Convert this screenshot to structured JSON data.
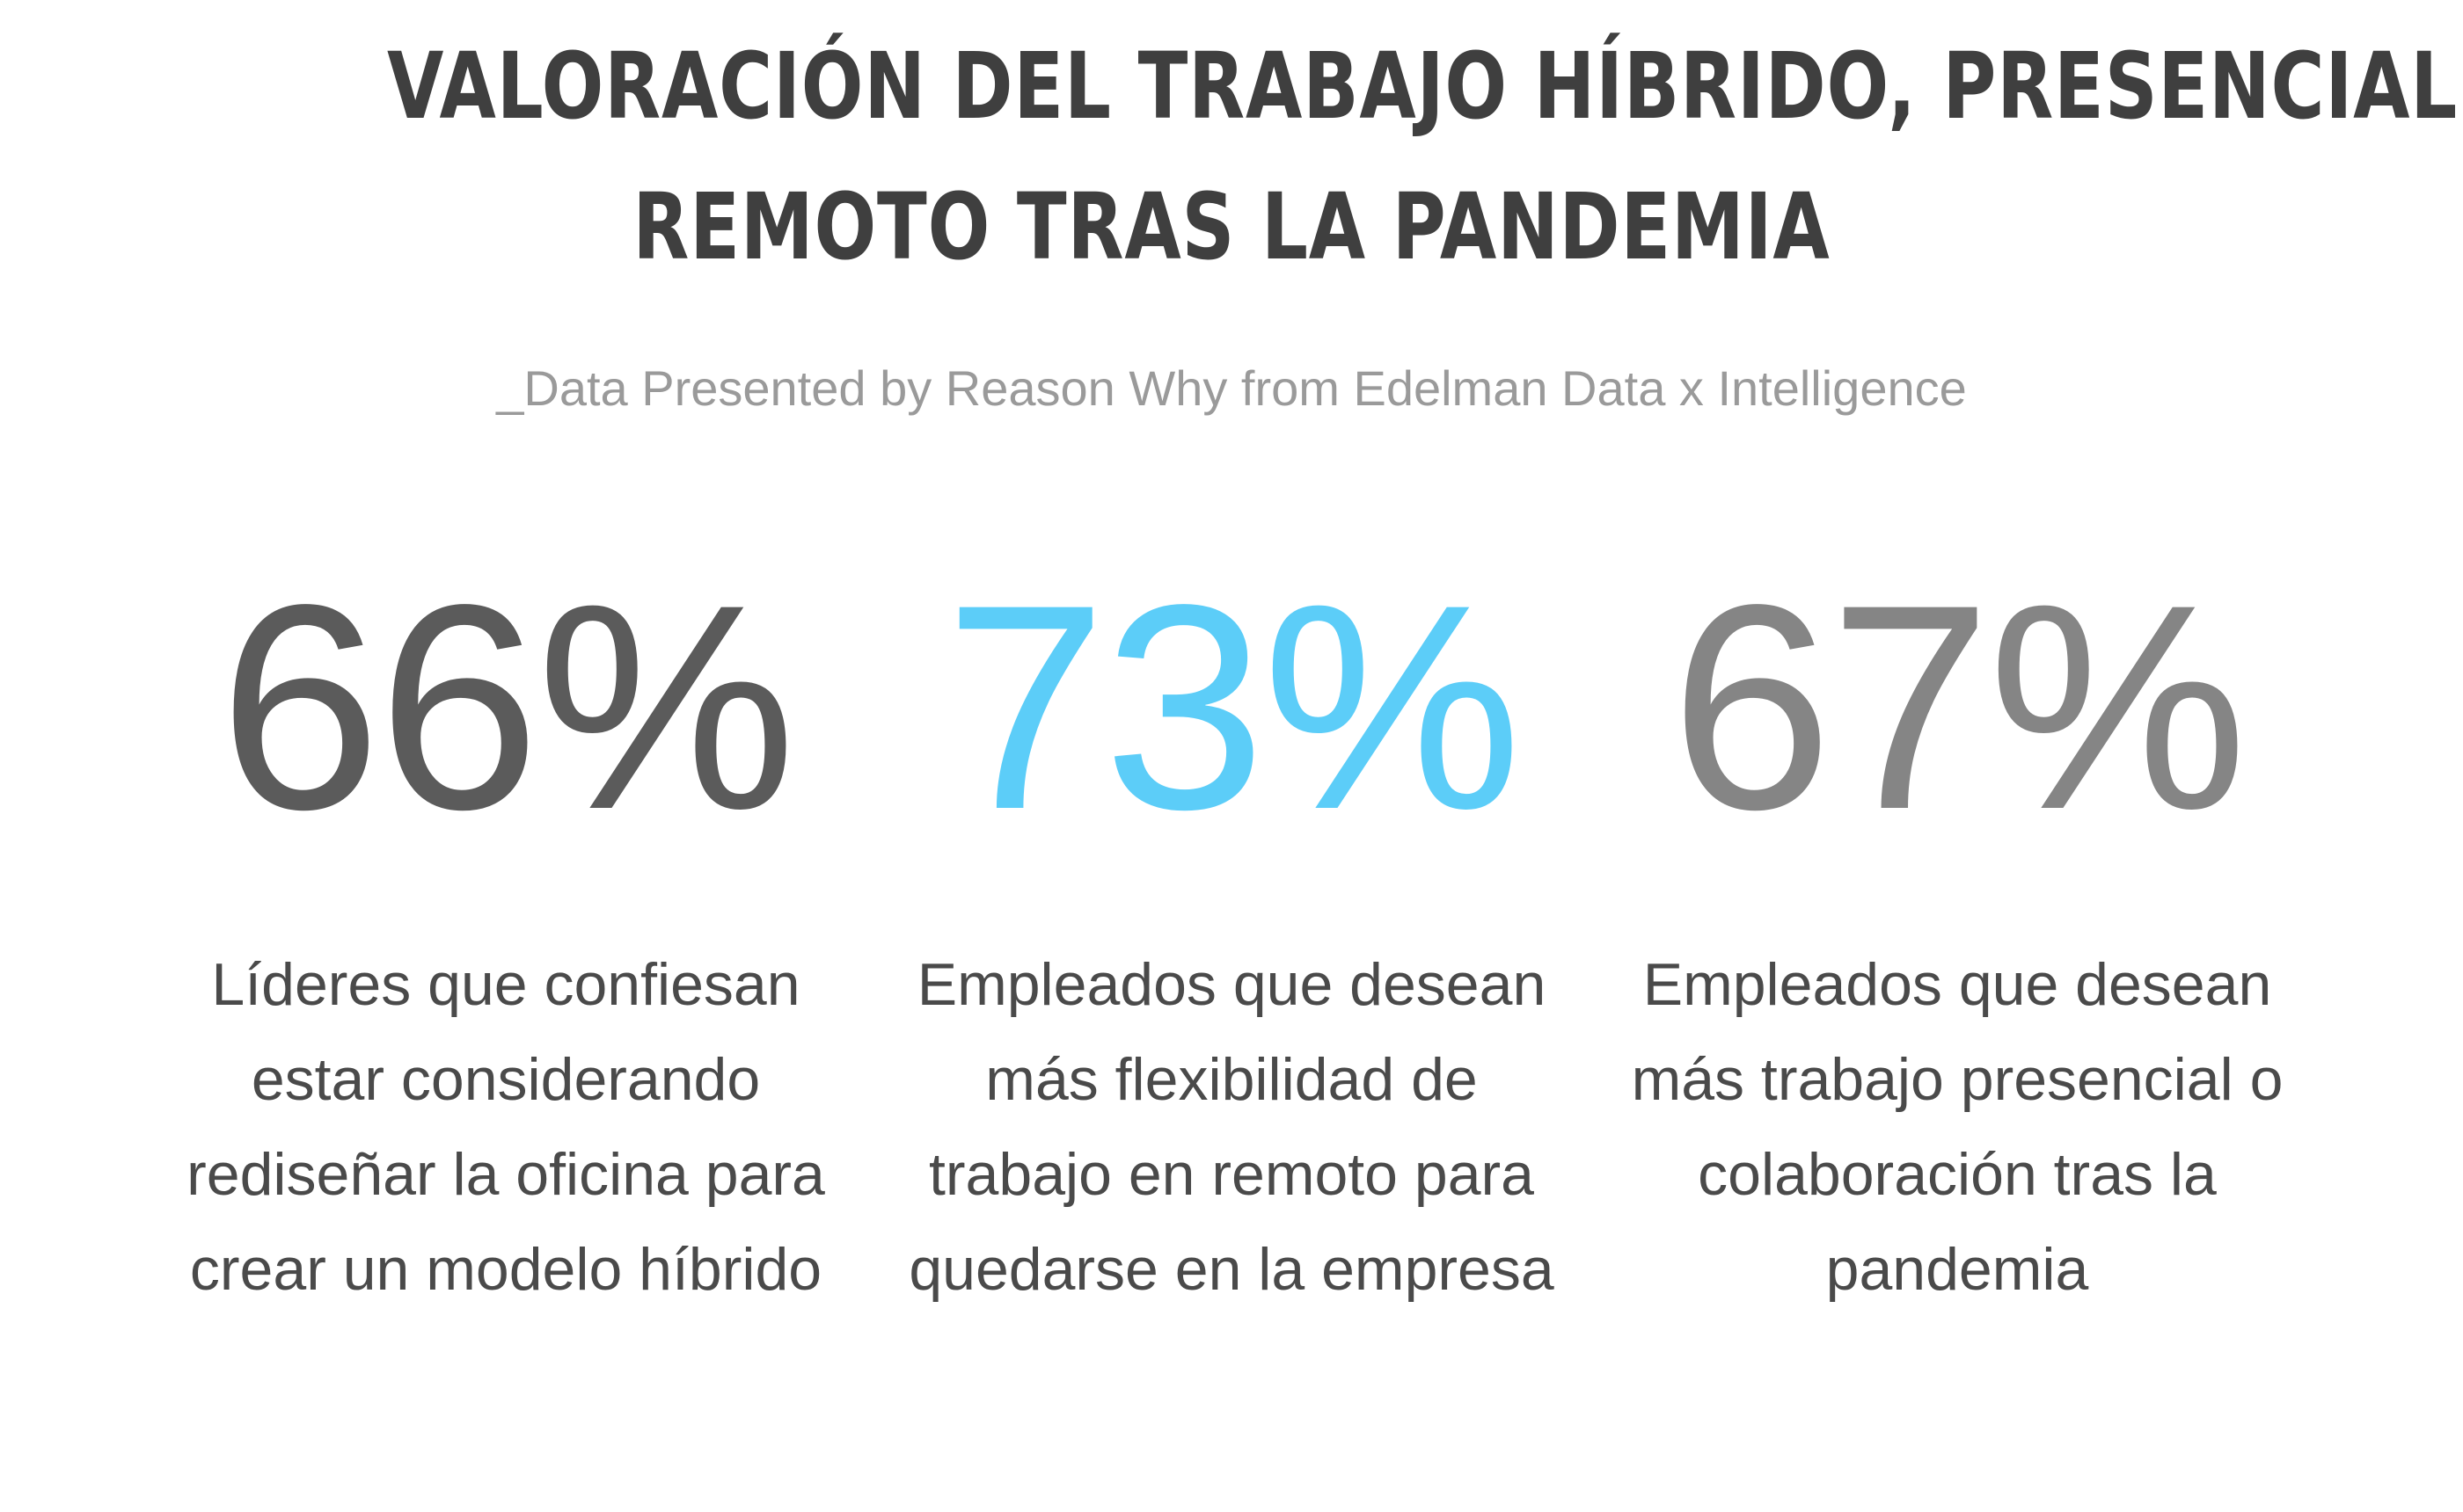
{
  "header": {
    "title_lines": [
      "VALORACIÓN DEL TRABAJO HÍBRIDO, PRESENCIAL Y",
      "REMOTO TRAS LA PANDEMIA"
    ],
    "subtitle": "_Data Presented by Reason Why from Edelman Data x Intelligence"
  },
  "stats": [
    {
      "value": "66%",
      "color": "#5b5b5b",
      "description_lines": [
        "Líderes que confiesan",
        "estar considerando",
        "rediseñar la oficina para",
        "crear un modelo híbrido"
      ]
    },
    {
      "value": "73%",
      "color": "#5ccdf8",
      "description_lines": [
        "Empleados que desean",
        "más flexibilidad de",
        "trabajo en remoto para",
        "quedarse en la empresa"
      ]
    },
    {
      "value": "67%",
      "color": "#858585",
      "description_lines": [
        "Empleados que desean",
        "más trabajo presencial o",
        "colaboración tras la",
        "pandemia"
      ]
    }
  ],
  "chart_data": {
    "type": "table",
    "categories": [
      "Líderes que confiesan estar considerando rediseñar la oficina para crear un modelo híbrido",
      "Empleados que desean más flexibilidad de trabajo en remoto para quedarse en la empresa",
      "Empleados que desean más trabajo presencial o colaboración tras la pandemia"
    ],
    "values": [
      66,
      73,
      67
    ],
    "title": "VALORACIÓN DEL TRABAJO HÍBRIDO, PRESENCIAL Y REMOTO TRAS LA PANDEMIA",
    "subtitle": "_Data Presented by Reason Why from Edelman Data x Intelligence"
  }
}
